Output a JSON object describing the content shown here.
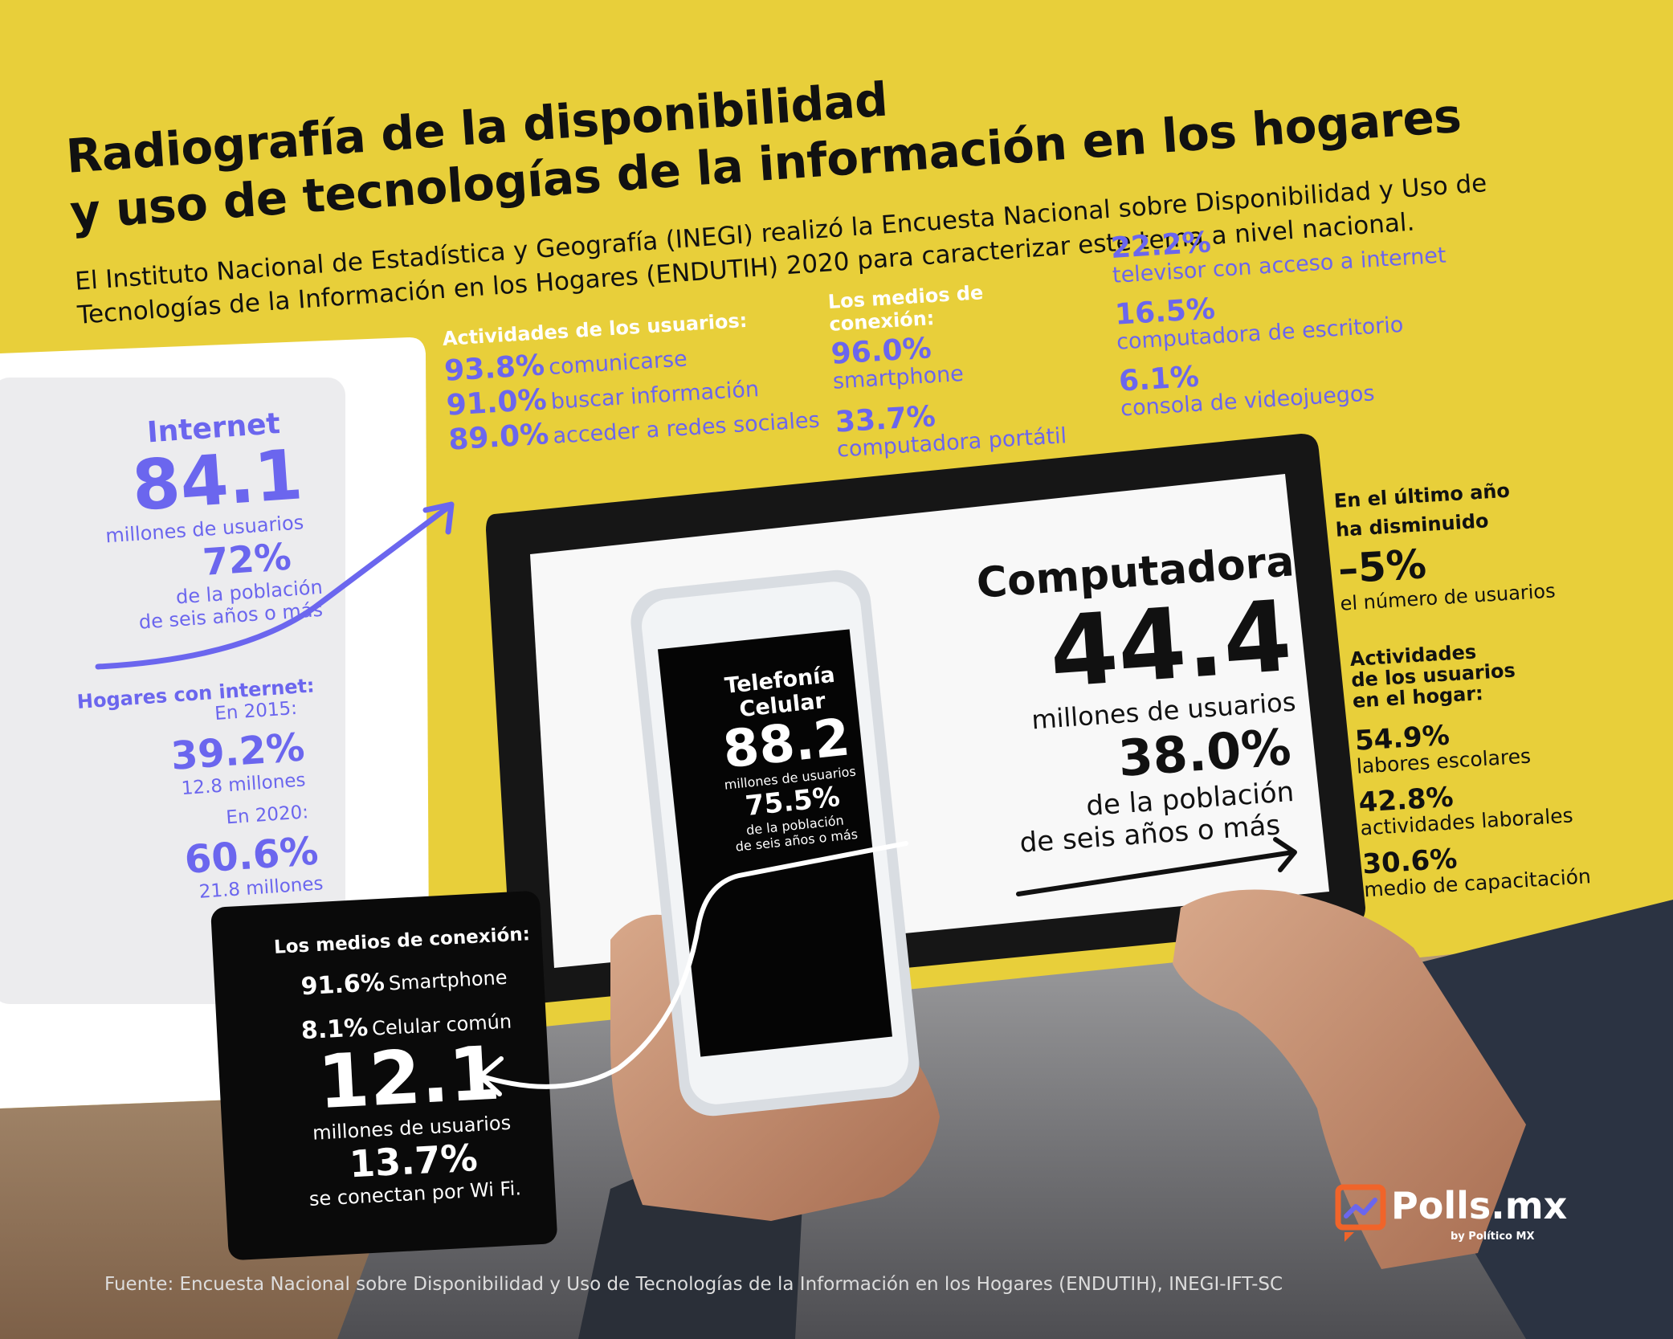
{
  "title": {
    "line1": "Radiografía de la disponibilidad",
    "line2": "y uso de tecnologías de la información en los hogares"
  },
  "intro": {
    "line1": "El Instituto Nacional de Estadística y Geografía (INEGI) realizó la Encuesta Nacional sobre Disponibilidad y Uso de",
    "line2": "Tecnologías de la Información en los Hogares (ENDUTIH) 2020 para caracterizar este tema a nivel nacional."
  },
  "internet": {
    "label": "Internet",
    "users": "84.1",
    "users_unit": "millones de usuarios",
    "pct": "72%",
    "pct_desc1": "de la población",
    "pct_desc2": "de seis años o más",
    "hogares_title": "Hogares con internet:",
    "y2015_label": "En 2015:",
    "y2015_pct": "39.2%",
    "y2015_mill": "12.8 millones",
    "y2020_label": "En 2020:",
    "y2020_pct": "60.6%",
    "y2020_mill": "21.8 millones"
  },
  "actividades": {
    "title": "Actividades de los usuarios:",
    "items": [
      {
        "pct": "93.8%",
        "label": "comunicarse"
      },
      {
        "pct": "91.0%",
        "label": "buscar información"
      },
      {
        "pct": "89.0%",
        "label": "acceder a redes sociales"
      }
    ]
  },
  "medios_internet": {
    "title": "Los medios de conexión:",
    "items": [
      {
        "pct": "96.0%",
        "label": "smartphone"
      },
      {
        "pct": "33.7%",
        "label": "computadora portátil"
      },
      {
        "pct": "22.2%",
        "label": "televisor con acceso a internet"
      },
      {
        "pct": "16.5%",
        "label": "computadora de escritorio"
      },
      {
        "pct": "6.1%",
        "label": "consola de videojuegos"
      }
    ]
  },
  "computadora": {
    "label": "Computadora",
    "users": "44.4",
    "users_unit": "millones de usuarios",
    "pct": "38.0%",
    "desc1": "de la población",
    "desc2": "de seis años o más"
  },
  "celular": {
    "label": "Telefonía Celular",
    "users": "88.2",
    "users_unit": "millones de usuarios",
    "pct": "75.5%",
    "desc1": "de la población",
    "desc2": "de seis años o más"
  },
  "medios_celular": {
    "title": "Los medios de conexión:",
    "items": [
      {
        "pct": "91.6%",
        "label": "Smartphone"
      },
      {
        "pct": "8.1%",
        "label": "Celular común"
      }
    ],
    "wifi_users": "12.1",
    "wifi_unit": "millones de usuarios",
    "wifi_pct": "13.7%",
    "wifi_desc": "se conectan por Wi Fi."
  },
  "disminucion": {
    "line1": "En el último año",
    "line2": "ha disminuido",
    "pct": "–5%",
    "desc": "el número de usuarios"
  },
  "hogar": {
    "title1": "Actividades",
    "title2": "de los usuarios",
    "title3": "en el hogar:",
    "items": [
      {
        "pct": "54.9%",
        "label": "labores escolares"
      },
      {
        "pct": "42.8%",
        "label": "actividades laborales"
      },
      {
        "pct": "30.6%",
        "label": "medio de capacitación"
      }
    ]
  },
  "logo": {
    "name": "Polls.mx",
    "sub": "by Político MX"
  },
  "fuente": "Fuente: Encuesta Nacional sobre Disponibilidad y Uso de Tecnologías de la Información en los Hogares (ENDUTIH), INEGI-IFT-SC",
  "colors": {
    "yellow": "#e8cf3a",
    "purple": "#6b66ee",
    "black": "#0a0a0a",
    "orange": "#f0642a"
  }
}
